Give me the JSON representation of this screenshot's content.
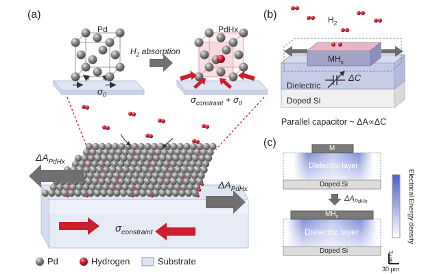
{
  "panel_a": {
    "tag": "(a)",
    "pd_label": "Pd",
    "pdhx_label": "PdHx",
    "absorption_label": "H",
    "absorption_sub": "2",
    "absorption_suffix": " absorption",
    "sigma0": "σ",
    "sigma0_sub": "0",
    "sigma_constraint_main": "σ",
    "sigma_constraint_sub": "constraint",
    "sigma_constraint_suffix": " + σ",
    "sigma_constraint_suffix_sub": "0",
    "delta_left": "ΔA",
    "delta_left_sub": "PdHx",
    "delta_right": "ΔA",
    "delta_right_sub": "PdHx",
    "sigma_bottom": "σ",
    "sigma_bottom_sub": "constraint"
  },
  "legend": {
    "pd": "Pd",
    "hydrogen": "Hydrogen",
    "substrate": "Substrate"
  },
  "panel_b": {
    "tag": "(b)",
    "h2": "H",
    "h2_sub": "2",
    "mhx": "MH",
    "mhx_sub": "x",
    "dielectric": "Dielectric",
    "delta_c": "ΔC",
    "doped_si": "Doped Si",
    "caption": "Parallel capacitor ~ ΔA∝ΔC"
  },
  "panel_c": {
    "tag": "(c)",
    "m_label": "M",
    "dielectric_top": "Dielectric layer",
    "doped_si_top": "Doped Si",
    "delta_label": "ΔA",
    "delta_sub": "PdHx",
    "mhx": "MH",
    "mhx_sub": "x",
    "dielectric_bottom": "Dielectric layer",
    "doped_si_bottom": "Doped Si",
    "colorbar_label": "Electrical Energy density",
    "scale_v": "3 μm",
    "scale_h": "30 μm"
  },
  "colors": {
    "pd_sphere": "#7a7a7a",
    "hydrogen": "#c8102e",
    "substrate": "#dfe5f2",
    "arrow_grey": "#707070",
    "arrow_red": "#cc1f2e",
    "energy_blue": "#5568c4"
  }
}
